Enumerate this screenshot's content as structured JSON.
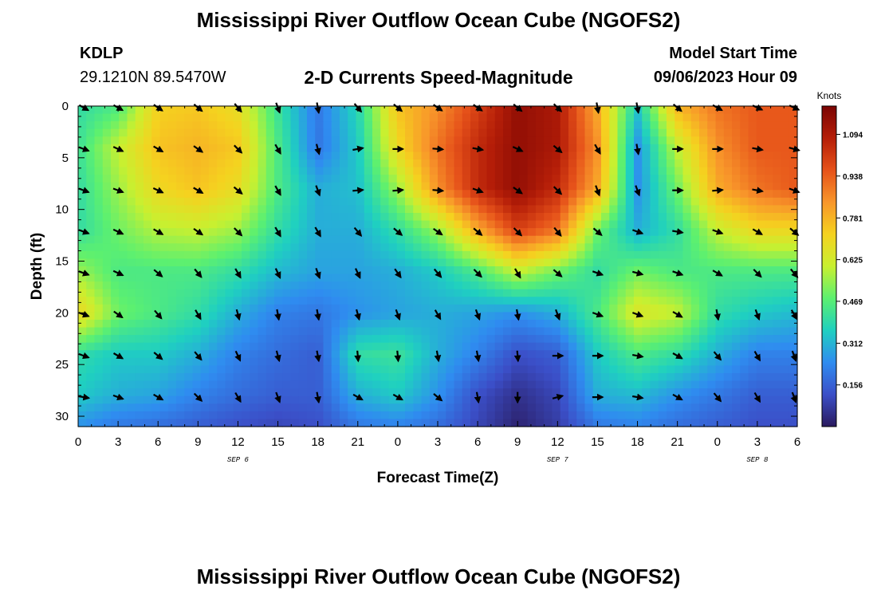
{
  "page": {
    "title": "Mississippi River Outflow Ocean Cube (NGOFS2)",
    "station": "KDLP",
    "coords": "29.1210N  89.5470W",
    "subtitle": "2-D Currents Speed-Magnitude",
    "start_label": "Model Start Time",
    "start_value": "09/06/2023 Hour 09",
    "footer_title": "Mississippi River Outflow Ocean Cube (NGOFS2)"
  },
  "chart_data": {
    "type": "heatmap",
    "xlabel": "Forecast Time(Z)",
    "ylabel": "Depth (ft)",
    "x_tick_labels": [
      "0",
      "3",
      "6",
      "9",
      "12",
      "15",
      "18",
      "21",
      "0",
      "3",
      "6",
      "9",
      "12",
      "15",
      "18",
      "21",
      "0",
      "3",
      "6"
    ],
    "x_range_hours": [
      0,
      54
    ],
    "date_labels": [
      {
        "label": "SEP 6",
        "hour": 12
      },
      {
        "label": "SEP 7",
        "hour": 36
      },
      {
        "label": "SEP 8",
        "hour": 51
      }
    ],
    "y_ticks": [
      0,
      5,
      10,
      15,
      20,
      25,
      30
    ],
    "y_range": [
      0,
      31
    ],
    "y_inverted": true,
    "colorbar": {
      "title": "Knots",
      "ticks": [
        0.156,
        0.312,
        0.469,
        0.625,
        0.781,
        0.938,
        1.094
      ],
      "range": [
        0.0,
        1.2
      ],
      "colors": [
        "#2a1a5e",
        "#3b4fc8",
        "#2f8cf0",
        "#1fd0c0",
        "#5cf070",
        "#c8f030",
        "#f5d21f",
        "#f8962a",
        "#e6521a",
        "#b51e08",
        "#7a0403"
      ]
    },
    "grid_hours": [
      0,
      3,
      6,
      9,
      12,
      15,
      18,
      21,
      24,
      27,
      30,
      33,
      36,
      39,
      42,
      45,
      48,
      51,
      54
    ],
    "grid_depths": [
      0,
      4,
      8,
      12,
      16,
      20,
      24,
      28,
      31
    ],
    "speed_knots": [
      [
        0.4,
        0.45,
        0.72,
        0.74,
        0.68,
        0.42,
        0.2,
        0.38,
        0.75,
        0.85,
        1.0,
        1.15,
        1.1,
        0.8,
        0.35,
        0.78,
        0.9,
        0.95,
        0.95
      ],
      [
        0.42,
        0.6,
        0.75,
        0.78,
        0.74,
        0.45,
        0.2,
        0.35,
        0.7,
        0.9,
        1.05,
        1.15,
        1.1,
        0.85,
        0.25,
        0.6,
        0.85,
        0.95,
        0.95
      ],
      [
        0.4,
        0.55,
        0.7,
        0.75,
        0.68,
        0.45,
        0.3,
        0.33,
        0.55,
        0.85,
        1.05,
        1.15,
        1.05,
        0.8,
        0.25,
        0.5,
        0.8,
        0.9,
        0.95
      ],
      [
        0.4,
        0.5,
        0.58,
        0.6,
        0.55,
        0.4,
        0.3,
        0.3,
        0.4,
        0.55,
        0.8,
        1.0,
        0.9,
        0.5,
        0.3,
        0.4,
        0.6,
        0.7,
        0.7
      ],
      [
        0.55,
        0.45,
        0.45,
        0.45,
        0.4,
        0.32,
        0.28,
        0.28,
        0.3,
        0.35,
        0.45,
        0.6,
        0.5,
        0.4,
        0.5,
        0.45,
        0.45,
        0.45,
        0.45
      ],
      [
        0.7,
        0.5,
        0.45,
        0.4,
        0.3,
        0.22,
        0.2,
        0.25,
        0.28,
        0.3,
        0.28,
        0.25,
        0.3,
        0.45,
        0.65,
        0.6,
        0.4,
        0.35,
        0.32
      ],
      [
        0.4,
        0.35,
        0.35,
        0.3,
        0.22,
        0.18,
        0.15,
        0.4,
        0.42,
        0.3,
        0.22,
        0.12,
        0.15,
        0.35,
        0.45,
        0.4,
        0.3,
        0.22,
        0.22
      ],
      [
        0.35,
        0.3,
        0.28,
        0.22,
        0.18,
        0.15,
        0.15,
        0.3,
        0.35,
        0.25,
        0.12,
        0.05,
        0.1,
        0.3,
        0.32,
        0.25,
        0.2,
        0.15,
        0.15
      ],
      [
        0.25,
        0.2,
        0.18,
        0.15,
        0.12,
        0.1,
        0.12,
        0.2,
        0.22,
        0.18,
        0.1,
        0.02,
        0.08,
        0.2,
        0.22,
        0.18,
        0.15,
        0.12,
        0.12
      ]
    ],
    "arrow_hours": [
      0,
      3,
      6,
      9,
      12,
      15,
      18,
      21,
      24,
      27,
      30,
      33,
      36,
      39,
      42,
      45,
      48,
      51,
      54
    ],
    "arrow_depths": [
      0,
      4,
      8,
      12,
      16,
      20,
      24,
      28
    ],
    "arrow_direction_deg": [
      [
        120,
        120,
        125,
        130,
        140,
        160,
        170,
        140,
        130,
        125,
        125,
        130,
        135,
        170,
        170,
        130,
        120,
        115,
        115
      ],
      [
        110,
        115,
        120,
        125,
        135,
        150,
        165,
        80,
        90,
        95,
        100,
        115,
        130,
        150,
        170,
        90,
        90,
        100,
        105
      ],
      [
        110,
        110,
        115,
        120,
        130,
        150,
        160,
        85,
        85,
        95,
        110,
        125,
        135,
        160,
        160,
        90,
        85,
        100,
        110
      ],
      [
        110,
        115,
        120,
        125,
        135,
        150,
        150,
        140,
        130,
        125,
        130,
        135,
        140,
        130,
        110,
        100,
        110,
        120,
        130
      ],
      [
        110,
        115,
        130,
        140,
        150,
        155,
        160,
        155,
        145,
        140,
        135,
        150,
        130,
        110,
        105,
        110,
        120,
        135,
        140
      ],
      [
        110,
        125,
        140,
        150,
        165,
        170,
        170,
        165,
        160,
        150,
        160,
        170,
        160,
        110,
        110,
        120,
        170,
        160,
        150
      ],
      [
        110,
        120,
        130,
        140,
        155,
        165,
        170,
        175,
        175,
        170,
        170,
        175,
        90,
        90,
        100,
        120,
        140,
        150,
        160
      ],
      [
        100,
        110,
        120,
        135,
        150,
        160,
        170,
        120,
        120,
        130,
        170,
        180,
        75,
        90,
        100,
        120,
        140,
        150,
        160
      ]
    ]
  }
}
